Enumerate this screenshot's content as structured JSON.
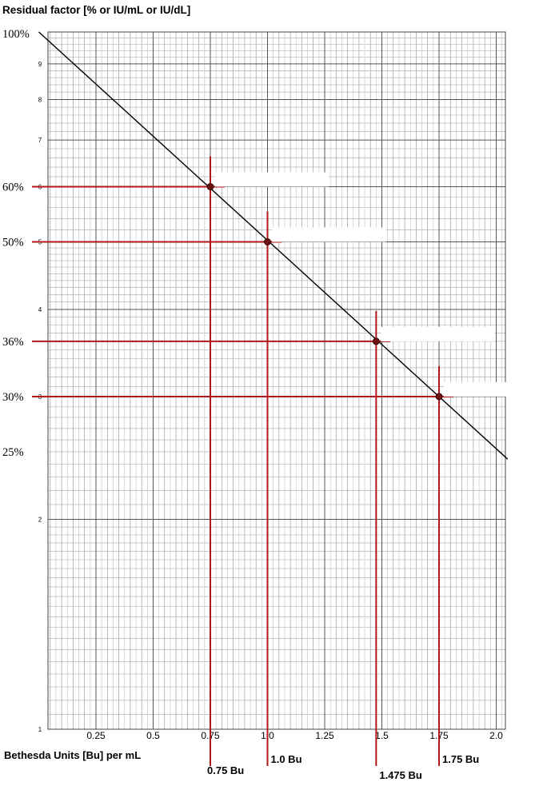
{
  "chart_data": {
    "type": "line",
    "title": "",
    "ylabel": "Residual factor [% or IU/mL or IU/dL]",
    "xlabel": "Bethesda Units [Bu] per mL",
    "y_scale": "log",
    "ylim": [
      10,
      100
    ],
    "xlim": [
      0,
      2.1
    ],
    "grid": true,
    "line_color": "#000000",
    "marker_color": "#b01818",
    "x_ticks": [
      {
        "value": 0.25,
        "label": "0.25"
      },
      {
        "value": 0.5,
        "label": "0.5"
      },
      {
        "value": 0.75,
        "label": "0.75"
      },
      {
        "value": 1.0,
        "label": "1.0"
      },
      {
        "value": 1.25,
        "label": "1.25"
      },
      {
        "value": 1.5,
        "label": "1.5"
      },
      {
        "value": 1.75,
        "label": "1.75"
      },
      {
        "value": 2.0,
        "label": "2.0"
      }
    ],
    "y_decade_ticks": [
      {
        "value": 20,
        "label": "2"
      },
      {
        "value": 40,
        "label": "4"
      },
      {
        "value": 50,
        "label": "5"
      },
      {
        "value": 60,
        "label": "6"
      },
      {
        "value": 70,
        "label": "7"
      },
      {
        "value": 80,
        "label": "8"
      },
      {
        "value": 90,
        "label": "9"
      },
      {
        "value": 30,
        "label": "3"
      },
      {
        "value": 10,
        "label": "1"
      }
    ],
    "y_percent_labels": [
      {
        "value": 100,
        "label": "100%"
      },
      {
        "value": 60,
        "label": "60%"
      },
      {
        "value": 50,
        "label": "50%"
      },
      {
        "value": 36,
        "label": "36%"
      },
      {
        "value": 30,
        "label": "30%"
      },
      {
        "value": 25,
        "label": "25%"
      }
    ],
    "series": [
      {
        "x": [
          0,
          2.05
        ],
        "y": [
          100,
          24.4
        ]
      }
    ],
    "highlighted_points": [
      {
        "x": 0.75,
        "y": 60,
        "label": "0.75 Bu"
      },
      {
        "x": 1.0,
        "y": 50,
        "label": "1.0 Bu"
      },
      {
        "x": 1.475,
        "y": 36,
        "label": "1.475 Bu"
      },
      {
        "x": 1.75,
        "y": 30,
        "label": "1.75 Bu"
      }
    ]
  }
}
